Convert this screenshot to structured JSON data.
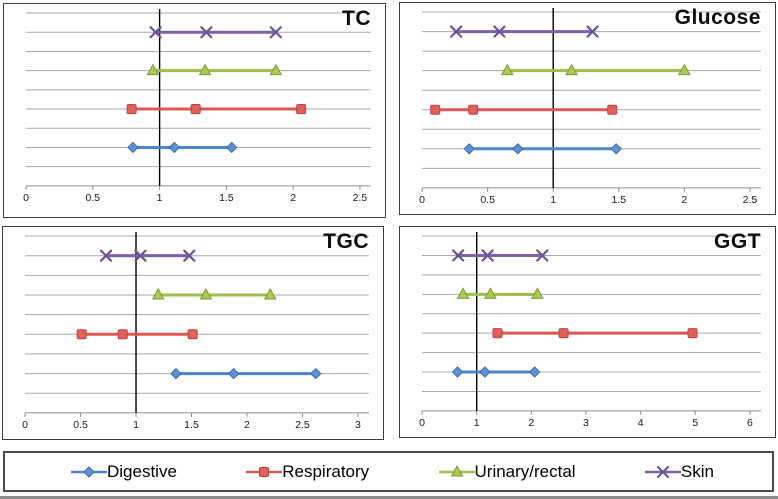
{
  "series_styles": {
    "Digestive": {
      "marker": "diamond",
      "color": "#4E86C5",
      "fill": "#5C94D3",
      "stroke": "#3A6BA8"
    },
    "Respiratory": {
      "marker": "square",
      "color": "#DB5855",
      "fill": "#E2615E",
      "stroke": "#B94340"
    },
    "Urinary/rectal": {
      "marker": "triangle",
      "color": "#9DBE4A",
      "fill": "#A9CB55",
      "stroke": "#7E9B34"
    },
    "Skin": {
      "marker": "xcross",
      "color": "#7C61A4",
      "fill": "none",
      "stroke": "#6C5295"
    }
  },
  "chart_data": [
    {
      "type": "line",
      "title": "TC",
      "xlabel": "",
      "ylabel": "",
      "xlim": [
        0,
        2.5
      ],
      "xticks": [
        0,
        0.5,
        1,
        1.5,
        2,
        2.5
      ],
      "ref_line": 1,
      "grid": true,
      "series": [
        {
          "name": "Skin",
          "values": [
            0.97,
            1.35,
            1.87
          ]
        },
        {
          "name": "Urinary/rectal",
          "values": [
            0.95,
            1.34,
            1.87
          ]
        },
        {
          "name": "Respiratory",
          "values": [
            0.79,
            1.27,
            2.06
          ]
        },
        {
          "name": "Digestive",
          "values": [
            0.8,
            1.11,
            1.54
          ]
        }
      ]
    },
    {
      "type": "line",
      "title": "Glucose",
      "xlabel": "",
      "ylabel": "",
      "xlim": [
        0,
        2.5
      ],
      "xticks": [
        0,
        0.5,
        1,
        1.5,
        2,
        2.5
      ],
      "ref_line": 1,
      "grid": true,
      "series": [
        {
          "name": "Skin",
          "values": [
            0.26,
            0.59,
            1.3
          ]
        },
        {
          "name": "Urinary/rectal",
          "values": [
            0.65,
            1.14,
            2.0
          ]
        },
        {
          "name": "Respiratory",
          "values": [
            0.1,
            0.39,
            1.45
          ]
        },
        {
          "name": "Digestive",
          "values": [
            0.36,
            0.73,
            1.48
          ]
        }
      ]
    },
    {
      "type": "line",
      "title": "TGC",
      "xlabel": "",
      "ylabel": "",
      "xlim": [
        0,
        3
      ],
      "xticks": [
        0,
        0.5,
        1,
        1.5,
        2,
        2.5,
        3
      ],
      "ref_line": 1,
      "grid": true,
      "series": [
        {
          "name": "Skin",
          "values": [
            0.73,
            1.04,
            1.48
          ]
        },
        {
          "name": "Urinary/rectal",
          "values": [
            1.2,
            1.63,
            2.21
          ]
        },
        {
          "name": "Respiratory",
          "values": [
            0.51,
            0.88,
            1.51
          ]
        },
        {
          "name": "Digestive",
          "values": [
            1.36,
            1.88,
            2.62
          ]
        }
      ]
    },
    {
      "type": "line",
      "title": "GGT",
      "xlabel": "",
      "ylabel": "",
      "xlim": [
        0,
        6
      ],
      "xticks": [
        0,
        1,
        2,
        3,
        4,
        5,
        6
      ],
      "ref_line": 1,
      "grid": true,
      "series": [
        {
          "name": "Skin",
          "values": [
            0.66,
            1.2,
            2.2
          ]
        },
        {
          "name": "Urinary/rectal",
          "values": [
            0.75,
            1.25,
            2.11
          ]
        },
        {
          "name": "Respiratory",
          "values": [
            1.38,
            2.59,
            4.95
          ]
        },
        {
          "name": "Digestive",
          "values": [
            0.65,
            1.15,
            2.06
          ]
        }
      ]
    }
  ],
  "legend": {
    "position": "bottom",
    "items": [
      {
        "label": "Digestive"
      },
      {
        "label": "Respiratory"
      },
      {
        "label": "Urinary/rectal"
      },
      {
        "label": "Skin"
      }
    ]
  }
}
